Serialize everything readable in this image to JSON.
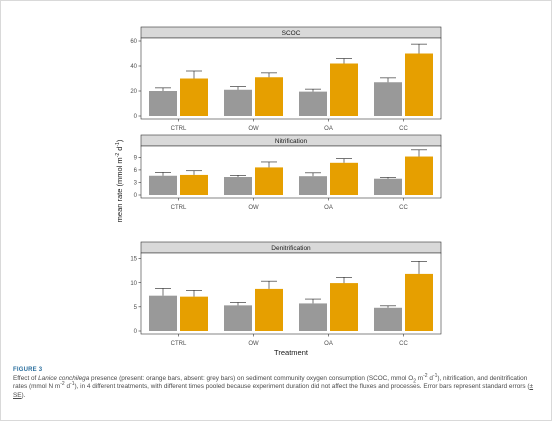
{
  "chart_data": {
    "type": "bar",
    "categories": [
      "CTRL",
      "OW",
      "OA",
      "CC"
    ],
    "xlabel": "Treatment",
    "ylabel_parts": {
      "base": "mean rate (mmol m",
      "sup1": "-2",
      "mid": "d",
      "sup2": "-1",
      "end": ")"
    },
    "series_colors": {
      "absent": "#999999",
      "present": "#E69F00"
    },
    "panels": [
      {
        "title": "SCOC",
        "ylim": [
          0,
          60
        ],
        "yticks": [
          "0",
          "20",
          "40",
          "60"
        ],
        "tick_values": [
          0,
          20,
          40,
          60
        ],
        "absent": {
          "values": [
            20,
            21,
            19.5,
            27
          ],
          "se": [
            2.5,
            2.5,
            2,
            3.5
          ]
        },
        "present": {
          "values": [
            30,
            31,
            42,
            50
          ],
          "se": [
            6,
            3.5,
            4,
            7.5
          ]
        }
      },
      {
        "title": "Nitrification",
        "ylim": [
          0,
          11
        ],
        "yticks": [
          "0",
          "3",
          "6",
          "9"
        ],
        "tick_values": [
          0,
          3,
          6,
          9
        ],
        "absent": {
          "values": [
            4.6,
            4.3,
            4.5,
            3.9
          ],
          "se": [
            0.8,
            0.4,
            0.8,
            0.3
          ]
        },
        "present": {
          "values": [
            4.8,
            6.6,
            7.7,
            9.2
          ],
          "se": [
            1.0,
            1.3,
            1.0,
            1.6
          ]
        }
      },
      {
        "title": "Denitrification",
        "ylim": [
          0,
          15.5
        ],
        "yticks": [
          "0",
          "5",
          "10",
          "15"
        ],
        "tick_values": [
          0,
          5,
          10,
          15
        ],
        "absent": {
          "values": [
            7.3,
            5.3,
            5.7,
            4.8
          ],
          "se": [
            1.5,
            0.6,
            0.9,
            0.4
          ]
        },
        "present": {
          "values": [
            7.1,
            8.7,
            9.9,
            11.8
          ],
          "se": [
            1.3,
            1.6,
            1.2,
            2.6
          ]
        }
      }
    ]
  },
  "caption": {
    "label": "FIGURE 3",
    "p1": "Effect of ",
    "species": "Lanice conchilega",
    "p2": " presence (present: orange bars, absent: grey bars) on sediment community oxygen consumption (SCOC, mmol O",
    "sub_o": "2",
    "p3": " m",
    "sup_a": "-2",
    "p4": " d",
    "sup_b": "-1",
    "p5": "), nitrification, and denitrification rates (mmol N m",
    "sup_c": "-2",
    "p6": " d",
    "sup_d": "-1",
    "p7": "), in 4 different treatments, with different times pooled because experiment duration did not affect the fluxes and processes. Error bars represent standard errors (",
    "pm": "± SE",
    "p8": ")."
  }
}
